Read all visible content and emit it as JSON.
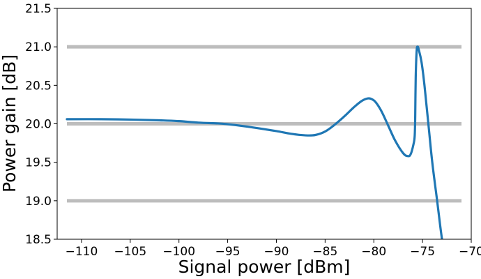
{
  "chart_data": {
    "type": "line",
    "title": "",
    "xlabel": "Signal power [dBm]",
    "ylabel": "Power gain [dB]",
    "xlim": [
      -112.5,
      -70.0
    ],
    "ylim": [
      18.5,
      21.5
    ],
    "grid": false,
    "legend": "none",
    "x_ticks": [
      -110,
      -105,
      -100,
      -95,
      -90,
      -85,
      -80,
      -75,
      -70
    ],
    "x_tick_labels": [
      "−110",
      "−105",
      "−100",
      "−95",
      "−90",
      "−85",
      "−80",
      "−75",
      "−70"
    ],
    "y_ticks": [
      18.5,
      19.0,
      19.5,
      20.0,
      20.5,
      21.0,
      21.5
    ],
    "y_tick_labels": [
      "18.5",
      "19.0",
      "19.5",
      "20.0",
      "20.5",
      "21.0",
      "21.5"
    ],
    "reference_lines": [
      {
        "y": 21.0,
        "x_range": [
          -111.5,
          -71.0
        ],
        "color": "#bdbdbd"
      },
      {
        "y": 20.0,
        "x_range": [
          -111.5,
          -71.0
        ],
        "color": "#bdbdbd"
      },
      {
        "y": 19.0,
        "x_range": [
          -111.5,
          -71.0
        ],
        "color": "#bdbdbd"
      }
    ],
    "series": [
      {
        "color": "#1f77b4",
        "x": [
          -111.5,
          -108,
          -105,
          -102,
          -100,
          -98,
          -96,
          -95,
          -94,
          -92,
          -90,
          -88.5,
          -87,
          -86,
          -85,
          -84,
          -83,
          -82,
          -81.2,
          -80.6,
          -80.2,
          -79.8,
          -79.2,
          -78.5,
          -77.8,
          -77.0,
          -76.5,
          -76.2,
          -75.9,
          -75.8,
          -75.75,
          -75.7,
          -75.6,
          -75.5,
          -75.4,
          -75.1,
          -74.8,
          -74.4,
          -74.0,
          -73.5,
          -73.0,
          -72.6
        ],
        "y": [
          20.06,
          20.06,
          20.055,
          20.045,
          20.035,
          20.015,
          20.005,
          19.995,
          19.98,
          19.945,
          19.905,
          19.87,
          19.85,
          19.855,
          19.9,
          19.99,
          20.1,
          20.22,
          20.3,
          20.33,
          20.32,
          20.28,
          20.16,
          19.97,
          19.78,
          19.62,
          19.58,
          19.61,
          19.75,
          19.85,
          20.1,
          20.6,
          20.95,
          21.0,
          20.97,
          20.8,
          20.5,
          20.0,
          19.5,
          19.0,
          18.5,
          18.25
        ]
      }
    ]
  }
}
